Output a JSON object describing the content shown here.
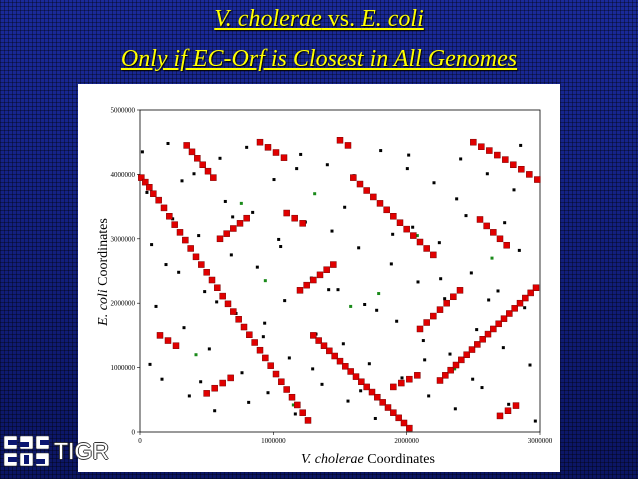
{
  "slide": {
    "title_line1_a": "V. cholerae",
    "title_line1_b": " vs. ",
    "title_line1_c": "E. coli",
    "title_line2": "Only if EC-Orf is Closest in All Genomes",
    "logo_text": "TIGR"
  },
  "chart_data": {
    "type": "scatter",
    "title": "",
    "xlabel_italic": "V. cholerae",
    "xlabel_rest": " Coordinates",
    "ylabel_italic": "E. coli",
    "ylabel_rest": " Coordinates",
    "xlim": [
      0,
      3000000
    ],
    "ylim": [
      0,
      5000000
    ],
    "x_ticks": [
      0,
      1000000,
      2000000,
      3000000
    ],
    "y_ticks": [
      0,
      1000000,
      2000000,
      3000000,
      4000000,
      5000000
    ],
    "x_tick_labels": [
      "0",
      "1000000",
      "2000000",
      "3000000"
    ],
    "y_tick_labels": [
      "0",
      "1000000",
      "2000000",
      "3000000",
      "4000000",
      "5000000"
    ],
    "grid": false,
    "series": [
      {
        "color": "#000000",
        "marker": "small-square",
        "points": [
          [
            18000,
            4350000
          ],
          [
            52000,
            3720000
          ],
          [
            87000,
            2910000
          ],
          [
            120000,
            1950000
          ],
          [
            165000,
            820000
          ],
          [
            210000,
            4480000
          ],
          [
            245000,
            3310000
          ],
          [
            290000,
            2480000
          ],
          [
            330000,
            1620000
          ],
          [
            370000,
            560000
          ],
          [
            405000,
            4010000
          ],
          [
            440000,
            3050000
          ],
          [
            485000,
            2180000
          ],
          [
            520000,
            1290000
          ],
          [
            560000,
            330000
          ],
          [
            600000,
            4250000
          ],
          [
            640000,
            3580000
          ],
          [
            685000,
            2750000
          ],
          [
            720000,
            1840000
          ],
          [
            765000,
            920000
          ],
          [
            800000,
            4420000
          ],
          [
            845000,
            3410000
          ],
          [
            880000,
            2560000
          ],
          [
            925000,
            1480000
          ],
          [
            960000,
            610000
          ],
          [
            1005000,
            3920000
          ],
          [
            1040000,
            2990000
          ],
          [
            1085000,
            2040000
          ],
          [
            1120000,
            1150000
          ],
          [
            1165000,
            280000
          ],
          [
            1205000,
            4310000
          ],
          [
            1240000,
            3260000
          ],
          [
            1285000,
            2390000
          ],
          [
            1320000,
            1520000
          ],
          [
            1365000,
            740000
          ],
          [
            1405000,
            4150000
          ],
          [
            1440000,
            3120000
          ],
          [
            1485000,
            2210000
          ],
          [
            1525000,
            1370000
          ],
          [
            1560000,
            480000
          ],
          [
            1605000,
            3980000
          ],
          [
            1640000,
            2860000
          ],
          [
            1685000,
            1980000
          ],
          [
            1720000,
            1060000
          ],
          [
            1765000,
            210000
          ],
          [
            1805000,
            4370000
          ],
          [
            1845000,
            3470000
          ],
          [
            1885000,
            2610000
          ],
          [
            1925000,
            1720000
          ],
          [
            1965000,
            840000
          ],
          [
            2005000,
            4090000
          ],
          [
            2045000,
            3180000
          ],
          [
            2085000,
            2330000
          ],
          [
            2125000,
            1420000
          ],
          [
            2165000,
            560000
          ],
          [
            2205000,
            3870000
          ],
          [
            2245000,
            2940000
          ],
          [
            2285000,
            2070000
          ],
          [
            2325000,
            1210000
          ],
          [
            2365000,
            360000
          ],
          [
            2405000,
            4240000
          ],
          [
            2445000,
            3360000
          ],
          [
            2485000,
            2470000
          ],
          [
            2525000,
            1590000
          ],
          [
            2565000,
            690000
          ],
          [
            2605000,
            4010000
          ],
          [
            2645000,
            3090000
          ],
          [
            2685000,
            2190000
          ],
          [
            2725000,
            1310000
          ],
          [
            2765000,
            430000
          ],
          [
            2805000,
            3760000
          ],
          [
            2845000,
            2820000
          ],
          [
            2885000,
            1930000
          ],
          [
            2925000,
            1040000
          ],
          [
            2965000,
            170000
          ],
          [
            75000,
            1050000
          ],
          [
            195000,
            2600000
          ],
          [
            315000,
            3900000
          ],
          [
            455000,
            780000
          ],
          [
            575000,
            2020000
          ],
          [
            695000,
            3340000
          ],
          [
            815000,
            460000
          ],
          [
            935000,
            1690000
          ],
          [
            1055000,
            2880000
          ],
          [
            1175000,
            4090000
          ],
          [
            1295000,
            980000
          ],
          [
            1415000,
            2210000
          ],
          [
            1535000,
            3490000
          ],
          [
            1655000,
            640000
          ],
          [
            1775000,
            1890000
          ],
          [
            1895000,
            3070000
          ],
          [
            2015000,
            4300000
          ],
          [
            2135000,
            1120000
          ],
          [
            2255000,
            2380000
          ],
          [
            2375000,
            3620000
          ],
          [
            2495000,
            820000
          ],
          [
            2615000,
            2050000
          ],
          [
            2735000,
            3250000
          ],
          [
            2855000,
            4450000
          ]
        ]
      },
      {
        "color": "#1a8a1a",
        "marker": "small-square",
        "points": [
          [
            420000,
            1200000
          ],
          [
            940000,
            2350000
          ],
          [
            1310000,
            3700000
          ],
          [
            1580000,
            1950000
          ],
          [
            1790000,
            2150000
          ],
          [
            2080000,
            3050000
          ],
          [
            2360000,
            980000
          ],
          [
            2640000,
            2700000
          ],
          [
            1150000,
            420000
          ],
          [
            760000,
            3550000
          ]
        ]
      },
      {
        "color": "#e00000",
        "marker": "square",
        "points": [
          [
            10000,
            3950000
          ],
          [
            40000,
            3880000
          ],
          [
            70000,
            3800000
          ],
          [
            100000,
            3700000
          ],
          [
            140000,
            3600000
          ],
          [
            180000,
            3480000
          ],
          [
            220000,
            3350000
          ],
          [
            260000,
            3220000
          ],
          [
            300000,
            3100000
          ],
          [
            340000,
            2980000
          ],
          [
            380000,
            2850000
          ],
          [
            420000,
            2720000
          ],
          [
            460000,
            2600000
          ],
          [
            500000,
            2480000
          ],
          [
            540000,
            2360000
          ],
          [
            580000,
            2240000
          ],
          [
            620000,
            2110000
          ],
          [
            660000,
            1990000
          ],
          [
            700000,
            1870000
          ],
          [
            740000,
            1750000
          ],
          [
            780000,
            1630000
          ],
          [
            820000,
            1510000
          ],
          [
            860000,
            1390000
          ],
          [
            900000,
            1270000
          ],
          [
            940000,
            1150000
          ],
          [
            980000,
            1030000
          ],
          [
            1020000,
            900000
          ],
          [
            1060000,
            780000
          ],
          [
            1100000,
            660000
          ],
          [
            1140000,
            540000
          ],
          [
            1180000,
            420000
          ],
          [
            1220000,
            300000
          ],
          [
            1260000,
            180000
          ],
          [
            350000,
            4450000
          ],
          [
            390000,
            4350000
          ],
          [
            430000,
            4250000
          ],
          [
            470000,
            4150000
          ],
          [
            510000,
            4050000
          ],
          [
            550000,
            3950000
          ],
          [
            1300000,
            1500000
          ],
          [
            1340000,
            1420000
          ],
          [
            1380000,
            1340000
          ],
          [
            1420000,
            1260000
          ],
          [
            1460000,
            1180000
          ],
          [
            1500000,
            1100000
          ],
          [
            1540000,
            1020000
          ],
          [
            1580000,
            940000
          ],
          [
            1620000,
            860000
          ],
          [
            1660000,
            780000
          ],
          [
            1700000,
            700000
          ],
          [
            1740000,
            620000
          ],
          [
            1780000,
            540000
          ],
          [
            1820000,
            460000
          ],
          [
            1860000,
            380000
          ],
          [
            1900000,
            300000
          ],
          [
            1940000,
            220000
          ],
          [
            1980000,
            140000
          ],
          [
            2020000,
            60000
          ],
          [
            2250000,
            800000
          ],
          [
            2290000,
            880000
          ],
          [
            2330000,
            960000
          ],
          [
            2370000,
            1040000
          ],
          [
            2410000,
            1120000
          ],
          [
            2450000,
            1200000
          ],
          [
            2490000,
            1280000
          ],
          [
            2530000,
            1360000
          ],
          [
            2570000,
            1440000
          ],
          [
            2610000,
            1520000
          ],
          [
            2650000,
            1600000
          ],
          [
            2690000,
            1680000
          ],
          [
            2730000,
            1760000
          ],
          [
            2770000,
            1840000
          ],
          [
            2810000,
            1920000
          ],
          [
            2850000,
            2000000
          ],
          [
            2890000,
            2080000
          ],
          [
            2930000,
            2160000
          ],
          [
            2970000,
            2240000
          ],
          [
            2500000,
            4500000
          ],
          [
            2560000,
            4430000
          ],
          [
            2620000,
            4370000
          ],
          [
            2680000,
            4300000
          ],
          [
            2740000,
            4230000
          ],
          [
            2800000,
            4150000
          ],
          [
            2860000,
            4080000
          ],
          [
            2920000,
            4000000
          ],
          [
            2980000,
            3920000
          ],
          [
            2550000,
            3300000
          ],
          [
            2600000,
            3200000
          ],
          [
            2650000,
            3100000
          ],
          [
            2700000,
            3000000
          ],
          [
            2750000,
            2900000
          ],
          [
            1600000,
            3950000
          ],
          [
            1650000,
            3850000
          ],
          [
            1700000,
            3750000
          ],
          [
            1750000,
            3650000
          ],
          [
            1800000,
            3550000
          ],
          [
            1850000,
            3450000
          ],
          [
            1900000,
            3350000
          ],
          [
            1950000,
            3250000
          ],
          [
            2000000,
            3150000
          ],
          [
            2050000,
            3050000
          ],
          [
            2100000,
            2950000
          ],
          [
            2150000,
            2850000
          ],
          [
            2200000,
            2750000
          ],
          [
            1200000,
            2200000
          ],
          [
            1250000,
            2280000
          ],
          [
            1300000,
            2360000
          ],
          [
            1350000,
            2440000
          ],
          [
            1400000,
            2520000
          ],
          [
            1450000,
            2600000
          ],
          [
            600000,
            3000000
          ],
          [
            650000,
            3080000
          ],
          [
            700000,
            3160000
          ],
          [
            750000,
            3240000
          ],
          [
            800000,
            3320000
          ],
          [
            2100000,
            1600000
          ],
          [
            2150000,
            1700000
          ],
          [
            2200000,
            1800000
          ],
          [
            2250000,
            1900000
          ],
          [
            2300000,
            2000000
          ],
          [
            2350000,
            2100000
          ],
          [
            2400000,
            2200000
          ],
          [
            500000,
            600000
          ],
          [
            560000,
            680000
          ],
          [
            620000,
            760000
          ],
          [
            680000,
            840000
          ],
          [
            900000,
            4500000
          ],
          [
            960000,
            4420000
          ],
          [
            1020000,
            4340000
          ],
          [
            1080000,
            4260000
          ],
          [
            1500000,
            4530000
          ],
          [
            1560000,
            4450000
          ],
          [
            1900000,
            700000
          ],
          [
            1960000,
            760000
          ],
          [
            2020000,
            820000
          ],
          [
            2080000,
            880000
          ],
          [
            2700000,
            250000
          ],
          [
            2760000,
            330000
          ],
          [
            2820000,
            410000
          ],
          [
            150000,
            1500000
          ],
          [
            210000,
            1420000
          ],
          [
            270000,
            1340000
          ],
          [
            1100000,
            3400000
          ],
          [
            1160000,
            3320000
          ],
          [
            1220000,
            3240000
          ]
        ]
      }
    ]
  }
}
